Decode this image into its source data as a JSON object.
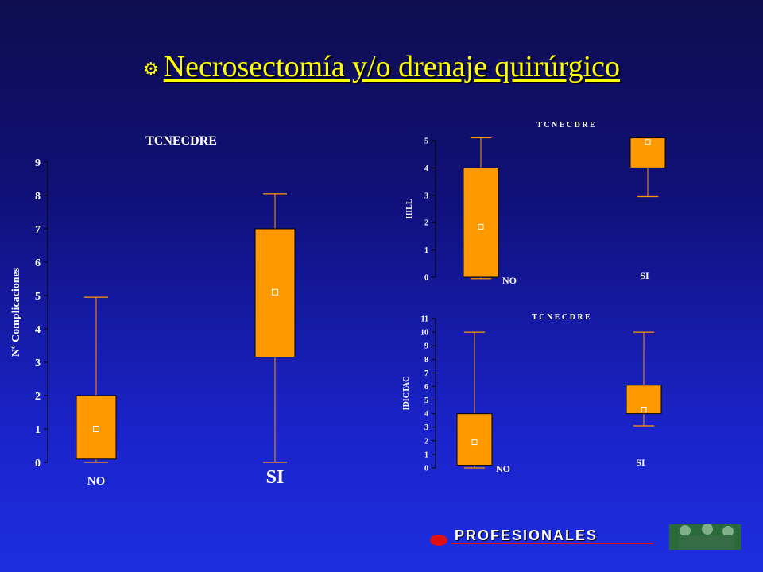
{
  "slide": {
    "title": "Necrosectomía y/o drenaje quirúrgico",
    "bullet_icon": "scroll-bullet-icon",
    "footer_logo_text": "PROFESIONALES"
  },
  "colors": {
    "box": "#ff9900",
    "whisker": "#ff9900",
    "text": "#ffffff",
    "title": "#ffff00"
  },
  "chart_data": [
    {
      "type": "box",
      "title": "TCNECDRE",
      "ylabel": "Nº Complicaciones",
      "ylim": [
        0,
        9
      ],
      "yticks": [
        0,
        1,
        2,
        3,
        4,
        5,
        6,
        7,
        8,
        9
      ],
      "categories": [
        "NO",
        "SI"
      ],
      "boxes": [
        {
          "category": "NO",
          "min": 0,
          "q1": 0.1,
          "q3": 2.0,
          "max": 4.95,
          "mean": 1.0
        },
        {
          "category": "SI",
          "min": 0,
          "q1": 3.15,
          "q3": 7.0,
          "max": 8.05,
          "mean": 5.1
        }
      ]
    },
    {
      "type": "box",
      "title": "T C N E C D R E",
      "ylabel": "HILL",
      "ylim": [
        0,
        5
      ],
      "yticks": [
        0,
        1,
        2,
        3,
        4,
        5
      ],
      "categories": [
        "NO",
        "SI"
      ],
      "boxes": [
        {
          "category": "NO",
          "min": -0.05,
          "q1": 0.0,
          "q3": 4.0,
          "max": 5.1,
          "mean": 1.85
        },
        {
          "category": "SI",
          "min": 2.95,
          "q1": 4.0,
          "q3": 5.1,
          "max": 5.1,
          "mean": 4.95
        }
      ]
    },
    {
      "type": "box",
      "title": "T C N E C D R E",
      "ylabel": "IDICTAC",
      "ylim": [
        0,
        11
      ],
      "yticks": [
        0,
        1,
        2,
        3,
        4,
        5,
        6,
        7,
        8,
        9,
        10,
        11
      ],
      "categories": [
        "NO",
        "SI"
      ],
      "boxes": [
        {
          "category": "NO",
          "min": 0.0,
          "q1": 0.2,
          "q3": 4.0,
          "max": 10.0,
          "mean": 1.9
        },
        {
          "category": "SI",
          "min": 3.1,
          "q1": 4.0,
          "q3": 6.1,
          "max": 10.0,
          "mean": 4.3
        }
      ]
    }
  ]
}
